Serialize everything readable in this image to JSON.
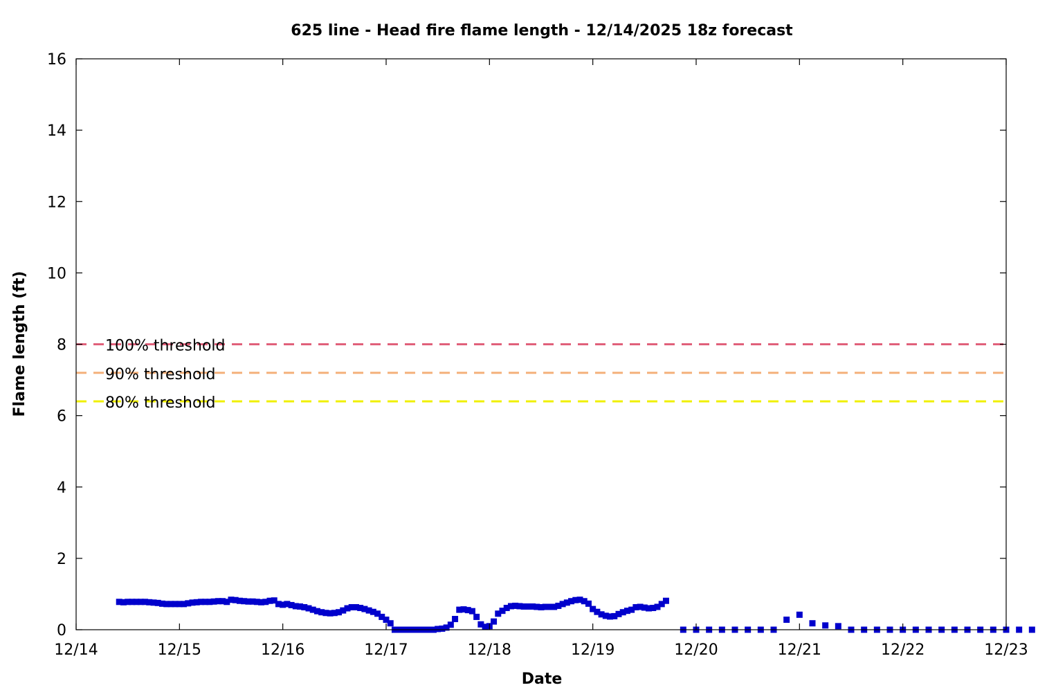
{
  "chart_data": {
    "type": "scatter",
    "title": "625 line - Head fire flame length - 12/14/2025 18z forecast",
    "xlabel": "Date",
    "ylabel": "Flame length (ft)",
    "x_unit": "date (MM/DD, 2025)",
    "xlim": [
      "12/14",
      "12/23"
    ],
    "ylim": [
      0,
      16
    ],
    "x_ticks": [
      "12/14",
      "12/15",
      "12/16",
      "12/17",
      "12/18",
      "12/19",
      "12/20",
      "12/21",
      "12/22",
      "12/23"
    ],
    "y_ticks": [
      0,
      2,
      4,
      6,
      8,
      10,
      12,
      14,
      16
    ],
    "grid": false,
    "thresholds": [
      {
        "label": "100% threshold",
        "value": 8.0,
        "color": "#e0607a"
      },
      {
        "label": "90% threshold",
        "value": 7.2,
        "color": "#f4b07a"
      },
      {
        "label": "80% threshold",
        "value": 6.4,
        "color": "#f0f000"
      }
    ],
    "series": [
      {
        "color": "#0000cc",
        "points": [
          [
            "12/14 10:00",
            0.78
          ],
          [
            "12/14 11:00",
            0.77
          ],
          [
            "12/14 12:00",
            0.78
          ],
          [
            "12/14 13:00",
            0.78
          ],
          [
            "12/14 14:00",
            0.78
          ],
          [
            "12/14 15:00",
            0.78
          ],
          [
            "12/14 16:00",
            0.78
          ],
          [
            "12/14 17:00",
            0.77
          ],
          [
            "12/14 18:00",
            0.76
          ],
          [
            "12/14 19:00",
            0.75
          ],
          [
            "12/14 20:00",
            0.73
          ],
          [
            "12/14 21:00",
            0.72
          ],
          [
            "12/14 22:00",
            0.72
          ],
          [
            "12/14 23:00",
            0.72
          ],
          [
            "12/15 00:00",
            0.72
          ],
          [
            "12/15 01:00",
            0.72
          ],
          [
            "12/15 02:00",
            0.74
          ],
          [
            "12/15 03:00",
            0.76
          ],
          [
            "12/15 04:00",
            0.77
          ],
          [
            "12/15 05:00",
            0.78
          ],
          [
            "12/15 06:00",
            0.78
          ],
          [
            "12/15 07:00",
            0.78
          ],
          [
            "12/15 08:00",
            0.79
          ],
          [
            "12/15 09:00",
            0.8
          ],
          [
            "12/15 10:00",
            0.8
          ],
          [
            "12/15 11:00",
            0.78
          ],
          [
            "12/15 12:00",
            0.84
          ],
          [
            "12/15 13:00",
            0.83
          ],
          [
            "12/15 14:00",
            0.81
          ],
          [
            "12/15 15:00",
            0.8
          ],
          [
            "12/15 16:00",
            0.79
          ],
          [
            "12/15 17:00",
            0.79
          ],
          [
            "12/15 18:00",
            0.78
          ],
          [
            "12/15 19:00",
            0.77
          ],
          [
            "12/15 20:00",
            0.78
          ],
          [
            "12/15 21:00",
            0.81
          ],
          [
            "12/15 22:00",
            0.82
          ],
          [
            "12/15 23:00",
            0.72
          ],
          [
            "12/16 00:00",
            0.7
          ],
          [
            "12/16 01:00",
            0.72
          ],
          [
            "12/16 02:00",
            0.69
          ],
          [
            "12/16 03:00",
            0.66
          ],
          [
            "12/16 04:00",
            0.65
          ],
          [
            "12/16 05:00",
            0.63
          ],
          [
            "12/16 06:00",
            0.6
          ],
          [
            "12/16 07:00",
            0.56
          ],
          [
            "12/16 08:00",
            0.52
          ],
          [
            "12/16 09:00",
            0.49
          ],
          [
            "12/16 10:00",
            0.47
          ],
          [
            "12/16 11:00",
            0.46
          ],
          [
            "12/16 12:00",
            0.47
          ],
          [
            "12/16 13:00",
            0.49
          ],
          [
            "12/16 14:00",
            0.54
          ],
          [
            "12/16 15:00",
            0.6
          ],
          [
            "12/16 16:00",
            0.63
          ],
          [
            "12/16 17:00",
            0.63
          ],
          [
            "12/16 18:00",
            0.61
          ],
          [
            "12/16 19:00",
            0.58
          ],
          [
            "12/16 20:00",
            0.54
          ],
          [
            "12/16 21:00",
            0.5
          ],
          [
            "12/16 22:00",
            0.45
          ],
          [
            "12/16 23:00",
            0.36
          ],
          [
            "12/17 00:00",
            0.28
          ],
          [
            "12/17 01:00",
            0.18
          ],
          [
            "12/17 02:00",
            0.0
          ],
          [
            "12/17 03:00",
            0.0
          ],
          [
            "12/17 04:00",
            0.0
          ],
          [
            "12/17 05:00",
            0.0
          ],
          [
            "12/17 06:00",
            0.0
          ],
          [
            "12/17 07:00",
            0.0
          ],
          [
            "12/17 08:00",
            0.0
          ],
          [
            "12/17 09:00",
            0.0
          ],
          [
            "12/17 10:00",
            0.0
          ],
          [
            "12/17 11:00",
            0.0
          ],
          [
            "12/17 12:00",
            0.02
          ],
          [
            "12/17 13:00",
            0.03
          ],
          [
            "12/17 14:00",
            0.06
          ],
          [
            "12/17 15:00",
            0.14
          ],
          [
            "12/17 16:00",
            0.3
          ],
          [
            "12/17 17:00",
            0.56
          ],
          [
            "12/17 18:00",
            0.57
          ],
          [
            "12/17 19:00",
            0.55
          ],
          [
            "12/17 20:00",
            0.52
          ],
          [
            "12/17 21:00",
            0.36
          ],
          [
            "12/17 22:00",
            0.15
          ],
          [
            "12/17 23:00",
            0.08
          ],
          [
            "12/18 00:00",
            0.1
          ],
          [
            "12/18 01:00",
            0.23
          ],
          [
            "12/18 02:00",
            0.45
          ],
          [
            "12/18 03:00",
            0.53
          ],
          [
            "12/18 04:00",
            0.61
          ],
          [
            "12/18 05:00",
            0.66
          ],
          [
            "12/18 06:00",
            0.67
          ],
          [
            "12/18 07:00",
            0.66
          ],
          [
            "12/18 08:00",
            0.65
          ],
          [
            "12/18 09:00",
            0.65
          ],
          [
            "12/18 10:00",
            0.65
          ],
          [
            "12/18 11:00",
            0.64
          ],
          [
            "12/18 12:00",
            0.63
          ],
          [
            "12/18 13:00",
            0.64
          ],
          [
            "12/18 14:00",
            0.64
          ],
          [
            "12/18 15:00",
            0.64
          ],
          [
            "12/18 16:00",
            0.67
          ],
          [
            "12/18 17:00",
            0.72
          ],
          [
            "12/18 18:00",
            0.76
          ],
          [
            "12/18 19:00",
            0.8
          ],
          [
            "12/18 20:00",
            0.83
          ],
          [
            "12/18 21:00",
            0.84
          ],
          [
            "12/18 22:00",
            0.8
          ],
          [
            "12/18 23:00",
            0.73
          ],
          [
            "12/19 00:00",
            0.58
          ],
          [
            "12/19 01:00",
            0.5
          ],
          [
            "12/19 02:00",
            0.43
          ],
          [
            "12/19 03:00",
            0.39
          ],
          [
            "12/19 04:00",
            0.37
          ],
          [
            "12/19 05:00",
            0.38
          ],
          [
            "12/19 06:00",
            0.44
          ],
          [
            "12/19 07:00",
            0.49
          ],
          [
            "12/19 08:00",
            0.53
          ],
          [
            "12/19 09:00",
            0.56
          ],
          [
            "12/19 10:00",
            0.63
          ],
          [
            "12/19 11:00",
            0.64
          ],
          [
            "12/19 12:00",
            0.62
          ],
          [
            "12/19 13:00",
            0.6
          ],
          [
            "12/19 14:00",
            0.61
          ],
          [
            "12/19 15:00",
            0.64
          ],
          [
            "12/19 16:00",
            0.72
          ],
          [
            "12/19 17:00",
            0.81
          ],
          [
            "12/19 21:00",
            0.0
          ],
          [
            "12/20 00:00",
            0.0
          ],
          [
            "12/20 03:00",
            0.0
          ],
          [
            "12/20 06:00",
            0.0
          ],
          [
            "12/20 09:00",
            0.0
          ],
          [
            "12/20 12:00",
            0.0
          ],
          [
            "12/20 15:00",
            0.0
          ],
          [
            "12/20 18:00",
            0.0
          ],
          [
            "12/20 21:00",
            0.28
          ],
          [
            "12/21 00:00",
            0.42
          ],
          [
            "12/21 03:00",
            0.18
          ],
          [
            "12/21 06:00",
            0.12
          ],
          [
            "12/21 09:00",
            0.1
          ],
          [
            "12/21 12:00",
            0.0
          ],
          [
            "12/21 15:00",
            0.0
          ],
          [
            "12/21 18:00",
            0.0
          ],
          [
            "12/21 21:00",
            0.0
          ],
          [
            "12/22 00:00",
            0.0
          ],
          [
            "12/22 03:00",
            0.0
          ],
          [
            "12/22 06:00",
            0.0
          ],
          [
            "12/22 09:00",
            0.0
          ],
          [
            "12/22 12:00",
            0.0
          ],
          [
            "12/22 15:00",
            0.0
          ],
          [
            "12/22 18:00",
            0.0
          ],
          [
            "12/22 21:00",
            0.0
          ],
          [
            "12/23 00:00",
            0.0
          ],
          [
            "12/23 03:00",
            0.0
          ],
          [
            "12/23 06:00",
            0.0
          ]
        ]
      }
    ]
  }
}
